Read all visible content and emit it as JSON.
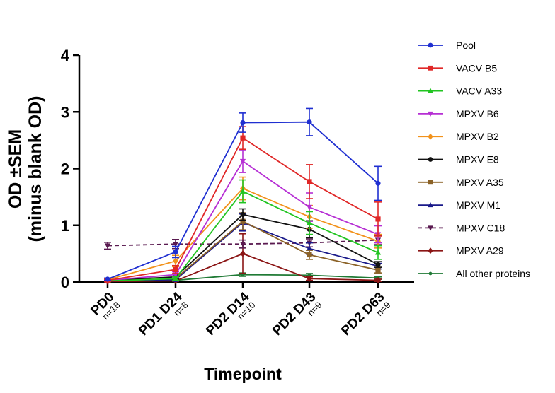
{
  "chart_data": {
    "type": "line",
    "xlabel": "Timepoint",
    "ylabel_line1": "OD ±SEM",
    "ylabel_line2": "(minus blank OD)",
    "ylim": [
      0,
      4
    ],
    "yticks": [
      "0",
      "1",
      "2",
      "3",
      "4"
    ],
    "categories": [
      "PD0",
      "PD1 D24",
      "PD2 D14",
      "PD2 D43",
      "PD2 D63"
    ],
    "n_labels": [
      "n=18",
      "n=8",
      "n=10",
      "n=9",
      "n=9"
    ],
    "grid": false,
    "legend_position": "right",
    "series": [
      {
        "name": "Pool",
        "color": "#1f2fd1",
        "marker": "circle",
        "dash": false,
        "values": [
          0.05,
          0.53,
          2.81,
          2.82,
          1.74
        ],
        "errors": [
          0.02,
          0.1,
          0.17,
          0.24,
          0.3
        ]
      },
      {
        "name": "VACV B5",
        "color": "#e02727",
        "marker": "square",
        "dash": false,
        "values": [
          0.03,
          0.22,
          2.54,
          1.77,
          1.11
        ],
        "errors": [
          0.02,
          0.07,
          0.2,
          0.3,
          0.3
        ]
      },
      {
        "name": "VACV A33",
        "color": "#21c421",
        "marker": "triangle-up",
        "dash": false,
        "values": [
          0.02,
          0.06,
          1.6,
          1.04,
          0.52
        ],
        "errors": [
          0.01,
          0.03,
          0.2,
          0.2,
          0.12
        ]
      },
      {
        "name": "MPXV B6",
        "color": "#b62fd4",
        "marker": "triangle-down",
        "dash": false,
        "values": [
          0.03,
          0.13,
          2.13,
          1.32,
          0.84
        ],
        "errors": [
          0.01,
          0.05,
          0.2,
          0.25,
          0.15
        ]
      },
      {
        "name": "MPXV B2",
        "color": "#f2921b",
        "marker": "diamond",
        "dash": false,
        "values": [
          0.04,
          0.37,
          1.65,
          1.15,
          0.72
        ],
        "errors": [
          0.02,
          0.1,
          0.2,
          0.2,
          0.12
        ]
      },
      {
        "name": "MPXV E8",
        "color": "#111111",
        "marker": "circle",
        "dash": false,
        "values": [
          0.03,
          0.09,
          1.19,
          0.93,
          0.31
        ],
        "errors": [
          0.01,
          0.04,
          0.1,
          0.15,
          0.05
        ]
      },
      {
        "name": "MPXV A35",
        "color": "#8b6227",
        "marker": "square",
        "dash": false,
        "values": [
          0.02,
          0.06,
          1.07,
          0.48,
          0.21
        ],
        "errors": [
          0.01,
          0.03,
          0.15,
          0.08,
          0.05
        ]
      },
      {
        "name": "MPXV M1",
        "color": "#1a1a8a",
        "marker": "triangle-up",
        "dash": false,
        "values": [
          0.02,
          0.04,
          1.05,
          0.59,
          0.28
        ],
        "errors": [
          0.01,
          0.02,
          0.15,
          0.1,
          0.05
        ]
      },
      {
        "name": "MPXV C18",
        "color": "#5a1a50",
        "marker": "triangle-down",
        "dash": true,
        "values": [
          0.64,
          0.67,
          0.67,
          0.69,
          0.74
        ],
        "errors": [
          0.06,
          0.08,
          0.07,
          0.07,
          0.08
        ]
      },
      {
        "name": "MPXV A29",
        "color": "#8b1515",
        "marker": "diamond",
        "dash": false,
        "values": [
          0.01,
          0.02,
          0.5,
          0.06,
          0.03
        ],
        "errors": [
          0.01,
          0.01,
          0.35,
          0.03,
          0.02
        ]
      },
      {
        "name": "All other proteins",
        "color": "#1f7a35",
        "marker": "circle-small",
        "dash": false,
        "values": [
          0.01,
          0.03,
          0.13,
          0.12,
          0.07
        ],
        "errors": [
          0.01,
          0.01,
          0.03,
          0.03,
          0.02
        ]
      }
    ]
  }
}
